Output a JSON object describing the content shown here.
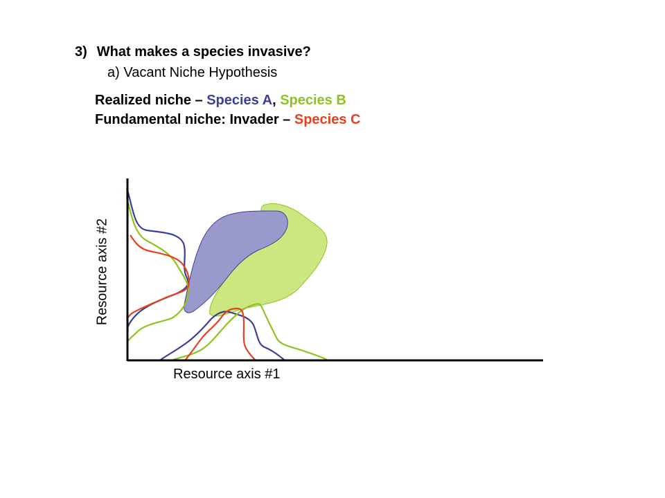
{
  "slide": {
    "heading_number": "3)",
    "heading_text": "What makes a species invasive?",
    "subheading": "a) Vacant Niche Hypothesis"
  },
  "legend": {
    "realized_prefix": "Realized niche –",
    "species_a": "Species A",
    "comma": ",",
    "species_b": "Species B",
    "fundamental_prefix": "Fundamental niche: Invader –",
    "species_c": "Species C"
  },
  "axes": {
    "x_label": "Resource axis #1",
    "y_label": "Resource axis #2"
  },
  "colors": {
    "species_a": "#3b3f96",
    "species_b": "#8dc21f",
    "species_c": "#e8401c",
    "species_a_fill": "#9999cc",
    "species_b_fill": "#cce680"
  }
}
